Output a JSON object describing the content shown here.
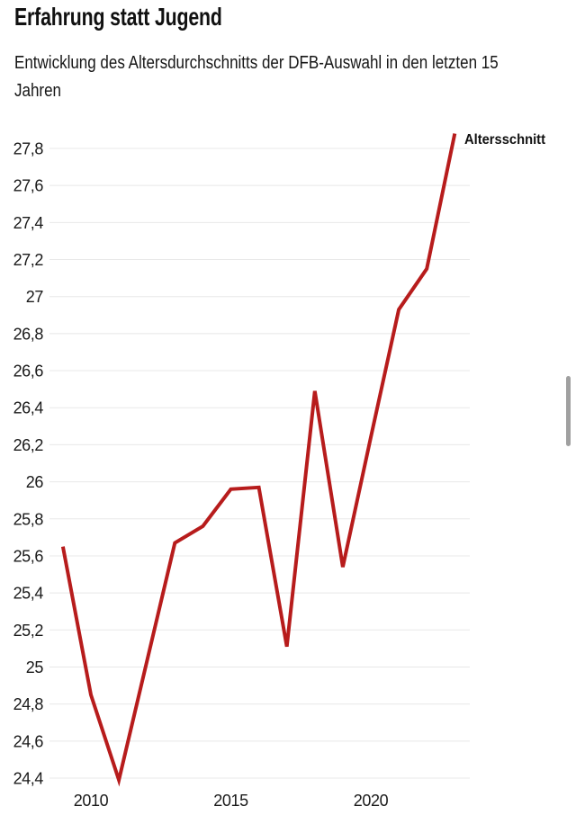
{
  "page": {
    "background": "#ffffff"
  },
  "header": {
    "title": "Erfahrung statt Jugend",
    "subtitle": "Entwicklung des Altersdurchschnitts der DFB-Auswahl in den letzten 15 Jahren",
    "subtitle_lines": [
      "Entwicklung des Altersdurchschnitts der DFB-Auswahl in den letzten 15",
      "Jahren"
    ]
  },
  "chart_data": {
    "type": "line",
    "title": "Erfahrung statt Jugend",
    "subtitle": "Entwicklung des Altersdurchschnitts der DFB-Auswahl in den letzten 15 Jahren",
    "x": [
      2009,
      2010,
      2011,
      2012,
      2013,
      2014,
      2015,
      2016,
      2017,
      2018,
      2019,
      2020,
      2021,
      2022,
      2023
    ],
    "series": [
      {
        "name": "Altersschnitt",
        "color": "#b71c1c",
        "values": [
          25.65,
          24.85,
          24.39,
          25.03,
          25.67,
          25.76,
          25.96,
          25.97,
          25.11,
          26.49,
          25.54,
          26.24,
          26.93,
          27.15,
          27.88
        ]
      }
    ],
    "ylim": [
      24.4,
      27.8
    ],
    "ytick_step": 0.2,
    "yticks": [
      {
        "value": 24.4,
        "label": "24,4"
      },
      {
        "value": 24.6,
        "label": "24,6"
      },
      {
        "value": 24.8,
        "label": "24,8"
      },
      {
        "value": 25.0,
        "label": "25"
      },
      {
        "value": 25.2,
        "label": "25,2"
      },
      {
        "value": 25.4,
        "label": "25,4"
      },
      {
        "value": 25.6,
        "label": "25,6"
      },
      {
        "value": 25.8,
        "label": "25,8"
      },
      {
        "value": 26.0,
        "label": "26"
      },
      {
        "value": 26.2,
        "label": "26,2"
      },
      {
        "value": 26.4,
        "label": "26,4"
      },
      {
        "value": 26.6,
        "label": "26,6"
      },
      {
        "value": 26.8,
        "label": "26,8"
      },
      {
        "value": 27.0,
        "label": "27"
      },
      {
        "value": 27.2,
        "label": "27,2"
      },
      {
        "value": 27.4,
        "label": "27,4"
      },
      {
        "value": 27.6,
        "label": "27,6"
      },
      {
        "value": 27.8,
        "label": "27,8"
      }
    ],
    "xticks": [
      {
        "value": 2010,
        "label": "2010"
      },
      {
        "value": 2015,
        "label": "2015"
      },
      {
        "value": 2020,
        "label": "2020"
      }
    ],
    "grid": true,
    "gridline_color": "#e8e8e8",
    "label_color": "#1a1a1a",
    "legend_position": "direct-label-at-line-end",
    "direct_label": "Altersschnitt"
  },
  "scrollbar": {
    "color": "#a0a0a0"
  }
}
